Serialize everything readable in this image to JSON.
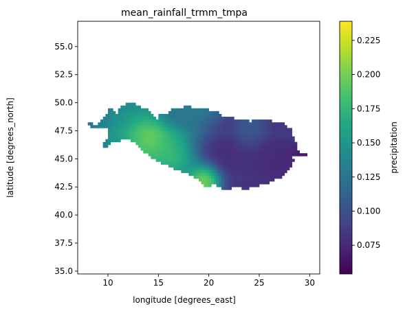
{
  "chart_data": {
    "type": "heatmap",
    "title": "mean_rainfall_trmm_tmpa",
    "xlabel": "longitude [degrees_east]",
    "ylabel": "latitude [degrees_north]",
    "colorbar_label": "precipitation",
    "colormap": "viridis",
    "background": "#ffffff",
    "xlim": [
      7,
      31
    ],
    "ylim": [
      34.75,
      57.25
    ],
    "x_ticks": [
      10,
      15,
      20,
      25,
      30
    ],
    "x_tick_labels": [
      "10",
      "15",
      "20",
      "25",
      "30"
    ],
    "y_ticks": [
      35.0,
      37.5,
      40.0,
      42.5,
      45.0,
      47.5,
      50.0,
      52.5,
      55.0
    ],
    "y_tick_labels": [
      "35.0",
      "37.5",
      "40.0",
      "42.5",
      "45.0",
      "47.5",
      "50.0",
      "52.5",
      "55.0"
    ],
    "clim": [
      0.054,
      0.239
    ],
    "colorbar_ticks": [
      0.075,
      0.1,
      0.125,
      0.15,
      0.175,
      0.2,
      0.225
    ],
    "colorbar_tick_labels": [
      "0.075",
      "0.100",
      "0.125",
      "0.150",
      "0.175",
      "0.200",
      "0.225"
    ],
    "grid": false,
    "cell_size_deg": 0.25,
    "lat_rows": [
      {
        "lat": 49.875,
        "lon_ranges": [
          [
            11.875,
            12.625
          ]
        ],
        "mean_value": 0.125
      },
      {
        "lat": 49.625,
        "lon_ranges": [
          [
            11.375,
            13.125
          ],
          [
            17.625,
            18.125
          ]
        ],
        "mean_value": 0.12
      },
      {
        "lat": 49.375,
        "lon_ranges": [
          [
            10.125,
            10.375
          ],
          [
            11.125,
            13.875
          ],
          [
            16.375,
            19.875
          ]
        ],
        "mean_value": 0.115
      },
      {
        "lat": 49.125,
        "lon_ranges": [
          [
            10.125,
            10.625
          ],
          [
            11.125,
            14.125
          ],
          [
            16.125,
            20.875
          ]
        ],
        "mean_value": 0.11
      },
      {
        "lat": 48.875,
        "lon_ranges": [
          [
            9.875,
            14.375
          ],
          [
            15.125,
            21.125
          ]
        ],
        "mean_value": 0.11
      },
      {
        "lat": 48.625,
        "lon_ranges": [
          [
            9.625,
            14.625
          ],
          [
            15.125,
            22.375
          ]
        ],
        "mean_value": 0.105
      },
      {
        "lat": 48.375,
        "lon_ranges": [
          [
            9.375,
            23.875
          ],
          [
            24.375,
            26.125
          ]
        ],
        "mean_value": 0.105
      },
      {
        "lat": 48.125,
        "lon_ranges": [
          [
            8.125,
            8.375
          ],
          [
            9.125,
            27.375
          ]
        ],
        "mean_value": 0.105
      },
      {
        "lat": 47.875,
        "lon_ranges": [
          [
            8.375,
            8.625
          ],
          [
            8.875,
            27.625
          ]
        ],
        "mean_value": 0.11
      },
      {
        "lat": 47.625,
        "lon_ranges": [
          [
            10.125,
            28.125
          ]
        ],
        "mean_value": 0.115
      },
      {
        "lat": 47.375,
        "lon_ranges": [
          [
            10.125,
            28.125
          ]
        ],
        "mean_value": 0.12
      },
      {
        "lat": 47.125,
        "lon_ranges": [
          [
            10.125,
            28.125
          ]
        ],
        "mean_value": 0.12
      },
      {
        "lat": 46.875,
        "lon_ranges": [
          [
            10.125,
            28.375
          ]
        ],
        "mean_value": 0.115
      },
      {
        "lat": 46.625,
        "lon_ranges": [
          [
            9.875,
            11.125
          ],
          [
            12.375,
            28.375
          ]
        ],
        "mean_value": 0.11
      },
      {
        "lat": 46.375,
        "lon_ranges": [
          [
            9.625,
            10.125
          ],
          [
            12.875,
            28.625
          ]
        ],
        "mean_value": 0.105
      },
      {
        "lat": 46.125,
        "lon_ranges": [
          [
            9.625,
            9.875
          ],
          [
            13.125,
            28.625
          ]
        ],
        "mean_value": 0.1
      },
      {
        "lat": 45.875,
        "lon_ranges": [
          [
            13.375,
            28.625
          ]
        ],
        "mean_value": 0.1
      },
      {
        "lat": 45.625,
        "lon_ranges": [
          [
            13.625,
            28.875
          ]
        ],
        "mean_value": 0.095
      },
      {
        "lat": 45.375,
        "lon_ranges": [
          [
            14.125,
            29.625
          ]
        ],
        "mean_value": 0.095
      },
      {
        "lat": 45.125,
        "lon_ranges": [
          [
            14.375,
            28.125
          ]
        ],
        "mean_value": 0.095
      },
      {
        "lat": 44.875,
        "lon_ranges": [
          [
            14.875,
            28.375
          ]
        ],
        "mean_value": 0.095
      },
      {
        "lat": 44.625,
        "lon_ranges": [
          [
            15.375,
            28.125
          ]
        ],
        "mean_value": 0.09
      },
      {
        "lat": 44.375,
        "lon_ranges": [
          [
            16.125,
            28.125
          ]
        ],
        "mean_value": 0.09
      },
      {
        "lat": 44.125,
        "lon_ranges": [
          [
            16.625,
            27.875
          ]
        ],
        "mean_value": 0.09
      },
      {
        "lat": 43.875,
        "lon_ranges": [
          [
            17.375,
            27.625
          ]
        ],
        "mean_value": 0.09
      },
      {
        "lat": 43.625,
        "lon_ranges": [
          [
            18.125,
            27.375
          ]
        ],
        "mean_value": 0.09
      },
      {
        "lat": 43.375,
        "lon_ranges": [
          [
            18.625,
            27.125
          ]
        ],
        "mean_value": 0.09
      },
      {
        "lat": 43.125,
        "lon_ranges": [
          [
            19.125,
            26.375
          ]
        ],
        "mean_value": 0.09
      },
      {
        "lat": 42.875,
        "lon_ranges": [
          [
            19.375,
            25.875
          ]
        ],
        "mean_value": 0.085
      },
      {
        "lat": 42.625,
        "lon_ranges": [
          [
            19.625,
            20.125
          ],
          [
            20.875,
            21.875
          ],
          [
            22.125,
            23.875
          ],
          [
            24.125,
            24.875
          ]
        ],
        "mean_value": 0.085
      },
      {
        "lat": 42.375,
        "lon_ranges": [
          [
            21.375,
            22.125
          ],
          [
            23.375,
            23.875
          ]
        ],
        "mean_value": 0.085
      }
    ],
    "value_hotspots": [
      {
        "lon": 13.6,
        "lat": 46.7,
        "value": 0.23,
        "radius_deg": 1.3
      },
      {
        "lon": 19.5,
        "lat": 42.9,
        "value": 0.235,
        "radius_deg": 0.9
      },
      {
        "lon": 16.3,
        "lat": 45.2,
        "value": 0.2,
        "radius_deg": 1.4
      },
      {
        "lon": 11.5,
        "lat": 47.3,
        "value": 0.16,
        "radius_deg": 1.6
      },
      {
        "lon": 19.2,
        "lat": 49.2,
        "value": 0.14,
        "radius_deg": 1.4
      },
      {
        "lon": 27.0,
        "lat": 46.0,
        "value": 0.07,
        "radius_deg": 2.2
      },
      {
        "lon": 29.3,
        "lat": 45.3,
        "value": 0.055,
        "radius_deg": 0.6
      },
      {
        "lon": 21.5,
        "lat": 46.8,
        "value": 0.07,
        "radius_deg": 1.6
      },
      {
        "lon": 24.0,
        "lat": 47.8,
        "value": 0.12,
        "radius_deg": 1.0
      }
    ]
  }
}
